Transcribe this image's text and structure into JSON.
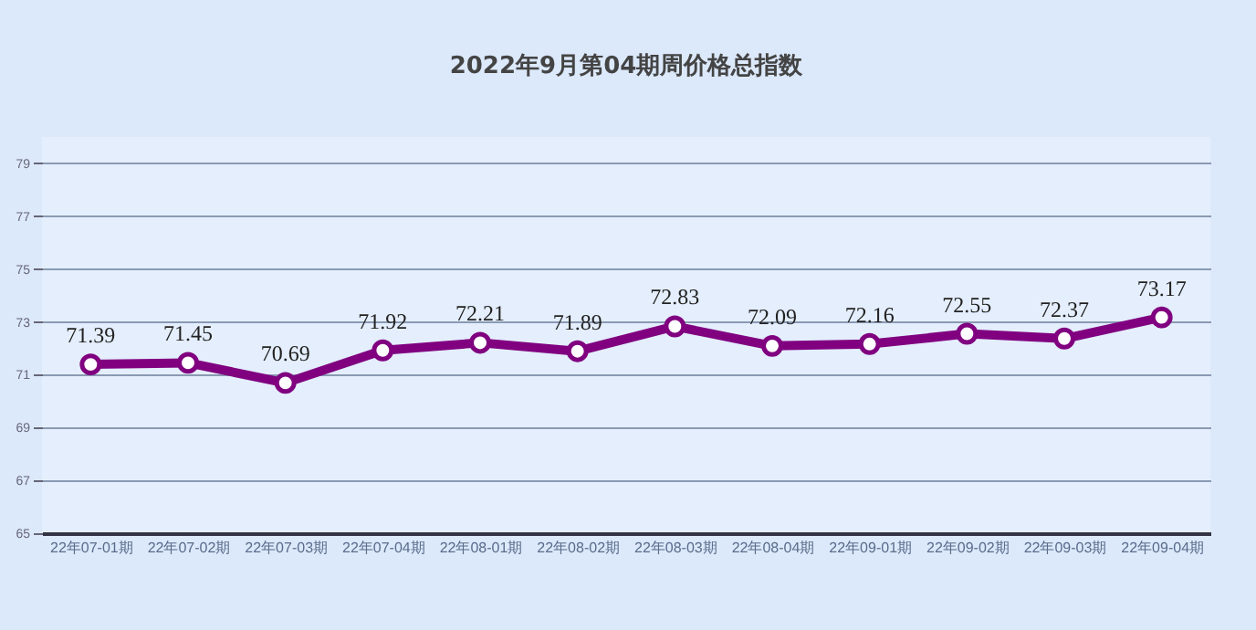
{
  "chart_data": {
    "type": "line",
    "title": "2022年9月第04期周价格总指数",
    "categories": [
      "22年07-01期",
      "22年07-02期",
      "22年07-03期",
      "22年07-04期",
      "22年08-01期",
      "22年08-02期",
      "22年08-03期",
      "22年08-04期",
      "22年09-01期",
      "22年09-02期",
      "22年09-03期",
      "22年09-04期"
    ],
    "series": [
      {
        "color": "#800080",
        "values": [
          71.39,
          71.45,
          70.69,
          71.92,
          72.21,
          71.89,
          72.83,
          72.09,
          72.16,
          72.55,
          72.37,
          73.17
        ]
      }
    ],
    "ylim": [
      65,
      80
    ],
    "yticks": [
      65,
      67,
      69,
      71,
      73,
      75,
      77,
      79
    ],
    "grid": "y",
    "marker": "circle",
    "data_labels": true
  }
}
